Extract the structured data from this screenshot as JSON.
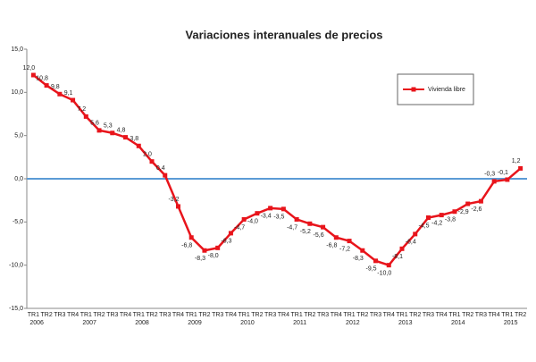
{
  "chart_data": {
    "type": "line",
    "title": "Variaciones interanuales de precios",
    "categories": [
      "TR1",
      "TR2",
      "TR3",
      "TR4",
      "TR1",
      "TR2",
      "TR3",
      "TR4",
      "TR1",
      "TR2",
      "TR3",
      "TR4",
      "TR1",
      "TR2",
      "TR3",
      "TR4",
      "TR1",
      "TR2",
      "TR3",
      "TR4",
      "TR1",
      "TR2",
      "TR3",
      "TR4",
      "TR1",
      "TR2",
      "TR3",
      "TR4",
      "TR1",
      "TR2",
      "TR3",
      "TR4",
      "TR1",
      "TR2",
      "TR3",
      "TR4",
      "TR1",
      "TR2"
    ],
    "years": [
      "2006",
      "2007",
      "2008",
      "2009",
      "2010",
      "2011",
      "2012",
      "2013",
      "2014",
      "2015"
    ],
    "series": [
      {
        "name": "Vivienda libre",
        "color": "#e8141b",
        "values": [
          12.0,
          10.8,
          9.8,
          9.1,
          7.2,
          5.6,
          5.3,
          4.8,
          3.8,
          2.0,
          0.4,
          -3.2,
          -6.8,
          -8.3,
          -8.0,
          -6.3,
          -4.7,
          -4.0,
          -3.4,
          -3.5,
          -4.7,
          -5.2,
          -5.6,
          -6.8,
          -7.2,
          -8.3,
          -9.5,
          -10.0,
          -8.1,
          -6.4,
          -4.5,
          -4.2,
          -3.8,
          -2.9,
          -2.6,
          -0.3,
          -0.1,
          1.2
        ],
        "value_labels": [
          "12,0",
          "10,8",
          "9,8",
          "9,1",
          "7,2",
          "5,6",
          "5,3",
          "4,8",
          "3,8",
          "2,0",
          "0,4",
          "-3,2",
          "-6,8",
          "-8,3",
          "-8,0",
          "-6,3",
          "-4,7",
          "-4,0",
          "-3,4",
          "-3,5",
          "-4,7",
          "-5,2",
          "-5,6",
          "-6,8",
          "-7,2",
          "-8,3",
          "-9,5",
          "-10,0",
          "-8,1",
          "-6,4",
          "-4,5",
          "-4,2",
          "-3,8",
          "-2,9",
          "-2,6",
          "-0,3",
          "-0,1",
          "1,2"
        ]
      }
    ],
    "ylim": [
      -15,
      15
    ],
    "yticks": [
      {
        "value": -15,
        "label": "-15,0"
      },
      {
        "value": -10,
        "label": "-10,0"
      },
      {
        "value": -5,
        "label": "-5,0"
      },
      {
        "value": 0,
        "label": "0,0"
      },
      {
        "value": 5,
        "label": "5,0"
      },
      {
        "value": 10,
        "label": "10,0"
      },
      {
        "value": 15,
        "label": "15,0"
      }
    ],
    "zero_line_color": "#5b9bd5",
    "legend": "upper right"
  }
}
